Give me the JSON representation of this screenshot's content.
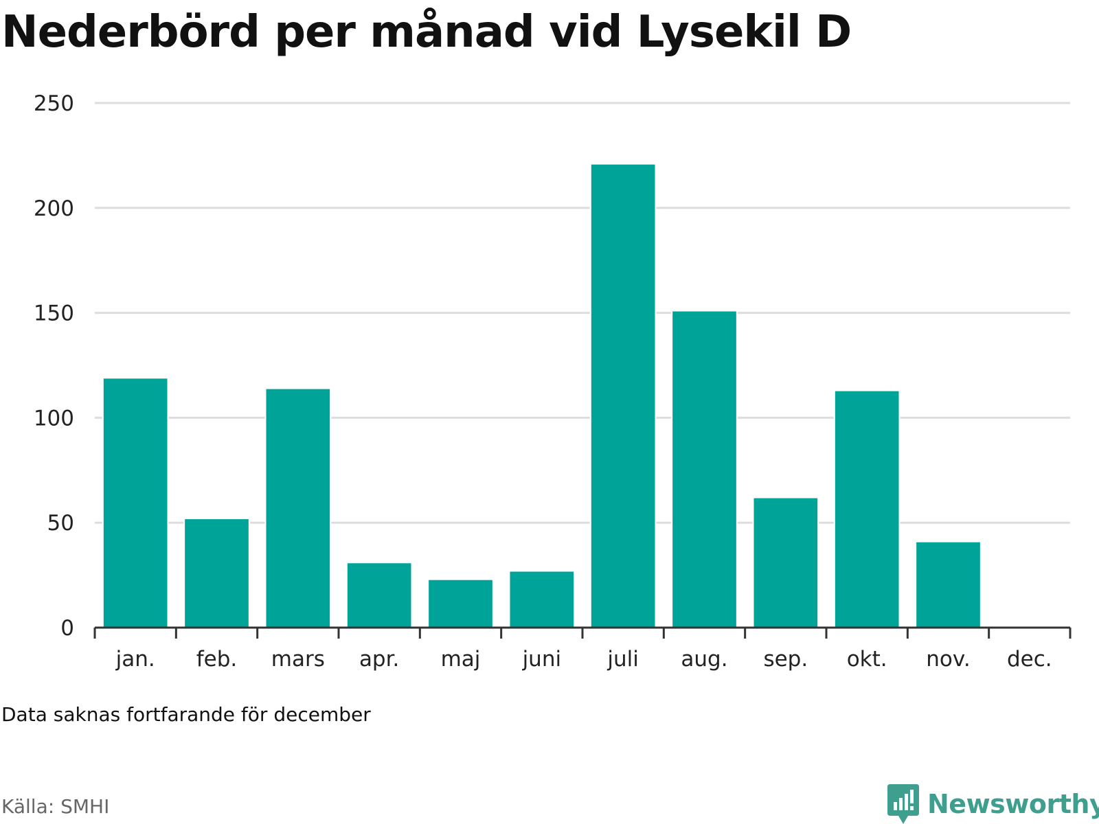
{
  "title": "Nederbörd per månad vid Lysekil D",
  "note": "Data saknas fortfarande för december",
  "source": "Källa: SMHI",
  "brand": {
    "name": "Newsworthy",
    "icon": "newsworthy-logo-icon",
    "color": "#3e9f8f"
  },
  "colors": {
    "bar": "#00a398",
    "grid": "#dddddd",
    "axis": "#333333"
  },
  "chart_data": {
    "type": "bar",
    "title": "Nederbörd per månad vid Lysekil D",
    "xlabel": "",
    "ylabel": "",
    "categories": [
      "jan.",
      "feb.",
      "mars",
      "apr.",
      "maj",
      "juni",
      "juli",
      "aug.",
      "sep.",
      "okt.",
      "nov.",
      "dec."
    ],
    "values": [
      119,
      52,
      114,
      31,
      23,
      27,
      221,
      151,
      62,
      113,
      41,
      null
    ],
    "ylim": [
      0,
      250
    ],
    "yticks": [
      0,
      50,
      100,
      150,
      200,
      250
    ],
    "grid": true,
    "legend": "none"
  }
}
